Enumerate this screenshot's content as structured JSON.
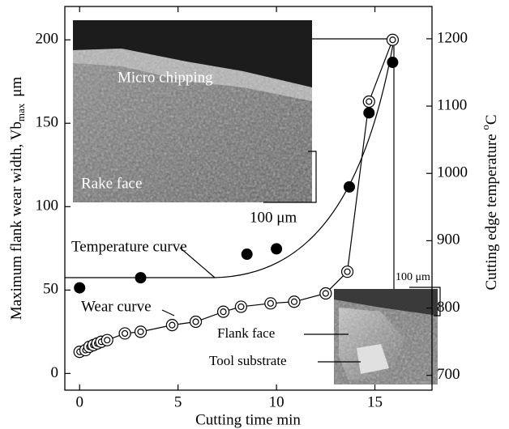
{
  "chart_data": {
    "type": "scatter",
    "xlabel": "Cutting time  min",
    "ylabel": "Maximum flank wear width, Vb",
    "ylabel_subscript": "max",
    "ylabel_unit": "μm",
    "y2label": "Cutting edge temperature ",
    "y2label_superscript": "o",
    "y2label_unit": "C",
    "xlim": [
      -0.75,
      17.9
    ],
    "xticks": [
      0,
      5,
      10,
      15
    ],
    "ylim": [
      -10,
      220
    ],
    "yticks": [
      0,
      50,
      100,
      150,
      200
    ],
    "y2lim": [
      678,
      1248
    ],
    "y2ticks": [
      700,
      800,
      900,
      1000,
      1100,
      1200
    ],
    "series": [
      {
        "name": "Wear curve",
        "color": "#000000",
        "marker": "double-circle",
        "x": [
          0,
          0.3,
          0.5,
          0.7,
          0.9,
          1.1,
          1.4,
          2.3,
          3.1,
          4.7,
          5.9,
          7.3,
          8.2,
          9.7,
          10.9,
          12.5,
          13.6,
          14.7,
          15.9
        ],
        "values": [
          13,
          14,
          16,
          17,
          18,
          19,
          20,
          24,
          25,
          29,
          31,
          37,
          40,
          42,
          43,
          48,
          61,
          163,
          200
        ]
      },
      {
        "name": "Temperature curve",
        "color": "#000000",
        "marker": "filled",
        "axis": "y2",
        "x": [
          0,
          3.1,
          8.5,
          10.0,
          13.7,
          14.7,
          15.9
        ],
        "values": [
          830,
          845,
          880,
          888,
          980,
          1090,
          1165
        ]
      }
    ],
    "annotations": [
      "Micro chipping",
      "Rake face",
      "100 μm",
      "100 μm",
      "Flank face",
      "Tool substrate"
    ]
  }
}
